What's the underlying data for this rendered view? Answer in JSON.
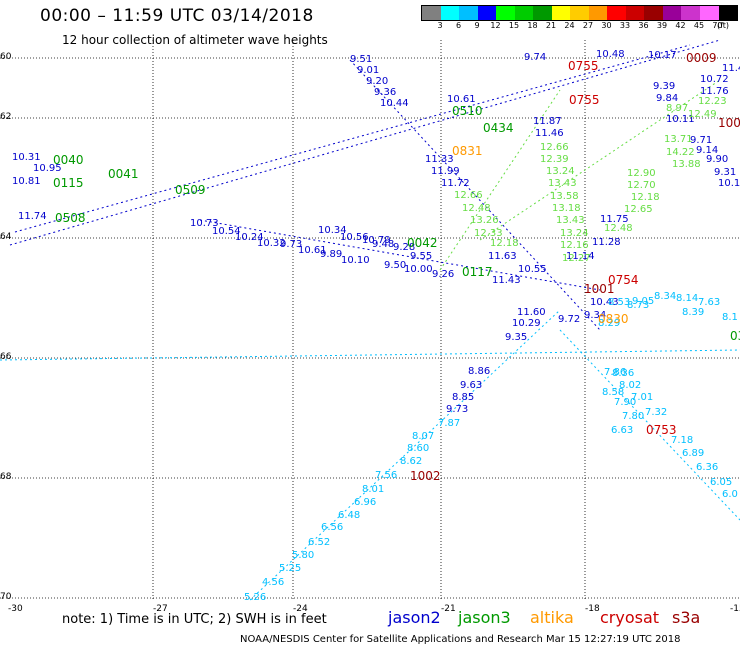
{
  "header": {
    "title": "00:00 – 11:59 UTC 03/14/2018",
    "subtitle": "12 hour collection of altimeter wave heights"
  },
  "colorbar": {
    "colors": [
      "#808080",
      "#00ffff",
      "#00bfff",
      "#0000ff",
      "#00ff00",
      "#00cc00",
      "#009900",
      "#ffff00",
      "#ffcc00",
      "#ff9900",
      "#ff0000",
      "#cc0000",
      "#990000",
      "#990099",
      "#cc33cc",
      "#ff66ff",
      "#000000"
    ],
    "ticks": [
      "3",
      "6",
      "9",
      "12",
      "15",
      "18",
      "21",
      "24",
      "27",
      "30",
      "33",
      "36",
      "39",
      "42",
      "45",
      "70"
    ],
    "unit": "(ft)"
  },
  "axes": {
    "lon_labels": [
      "-30",
      "-27",
      "-24",
      "-21",
      "-18",
      "-15"
    ],
    "lat_labels": [
      "60",
      "62",
      "64",
      "66",
      "68",
      "70"
    ]
  },
  "footer": {
    "note": "note: 1) Time is in UTC; 2) SWH is in feet",
    "legend": [
      {
        "name": "jason2",
        "color": "#0000cc"
      },
      {
        "name": "jason3",
        "color": "#009900"
      },
      {
        "name": "altika",
        "color": "#ff9900"
      },
      {
        "name": "cryosat",
        "color": "#cc0000"
      },
      {
        "name": "s3a",
        "color": "#990000"
      }
    ],
    "credit": "NOAA/NESDIS Center for Satellite Applications and Research     Mar 15 12:27:19 UTC 2018"
  },
  "map_labels": [
    {
      "t": "9.51",
      "c": "#0000cc"
    },
    {
      "t": "9.01",
      "c": "#0000cc"
    },
    {
      "t": "9.20",
      "c": "#0000cc"
    },
    {
      "t": "9.36",
      "c": "#0000cc"
    },
    {
      "t": "10.44",
      "c": "#0000cc"
    },
    {
      "t": "10.61",
      "c": "#0000cc"
    },
    {
      "t": "9.74",
      "c": "#0000cc"
    },
    {
      "t": "10.48",
      "c": "#0000cc"
    },
    {
      "t": "10.17",
      "c": "#0000cc"
    },
    {
      "t": "11.4",
      "c": "#0000cc"
    },
    {
      "t": "10.72",
      "c": "#0000cc"
    },
    {
      "t": "11.76",
      "c": "#0000cc"
    },
    {
      "t": "9.39",
      "c": "#0000cc"
    },
    {
      "t": "9.84",
      "c": "#0000cc"
    },
    {
      "t": "10.11",
      "c": "#0000cc"
    },
    {
      "t": "9.71",
      "c": "#0000cc"
    },
    {
      "t": "9.14",
      "c": "#0000cc"
    },
    {
      "t": "9.90",
      "c": "#0000cc"
    },
    {
      "t": "9.31",
      "c": "#0000cc"
    },
    {
      "t": "10.1",
      "c": "#0000cc"
    },
    {
      "t": "10.31",
      "c": "#0000cc"
    },
    {
      "t": "10.95",
      "c": "#0000cc"
    },
    {
      "t": "10.81",
      "c": "#0000cc"
    },
    {
      "t": "11.74",
      "c": "#0000cc"
    },
    {
      "t": "11.33",
      "c": "#0000cc"
    },
    {
      "t": "11.99",
      "c": "#0000cc"
    },
    {
      "t": "11.72",
      "c": "#0000cc"
    },
    {
      "t": "11.87",
      "c": "#0000cc"
    },
    {
      "t": "11.46",
      "c": "#0000cc"
    },
    {
      "t": "10.73",
      "c": "#0000cc"
    },
    {
      "t": "10.54",
      "c": "#0000cc"
    },
    {
      "t": "10.24",
      "c": "#0000cc"
    },
    {
      "t": "10.32",
      "c": "#0000cc"
    },
    {
      "t": "9.73",
      "c": "#0000cc"
    },
    {
      "t": "10.61",
      "c": "#0000cc"
    },
    {
      "t": "10.34",
      "c": "#0000cc"
    },
    {
      "t": "10.56",
      "c": "#0000cc"
    },
    {
      "t": "10.79",
      "c": "#0000cc"
    },
    {
      "t": "9.48",
      "c": "#0000cc"
    },
    {
      "t": "9.28",
      "c": "#0000cc"
    },
    {
      "t": "9.55",
      "c": "#0000cc"
    },
    {
      "t": "9.89",
      "c": "#0000cc"
    },
    {
      "t": "10.10",
      "c": "#0000cc"
    },
    {
      "t": "9.50",
      "c": "#0000cc"
    },
    {
      "t": "10.00",
      "c": "#0000cc"
    },
    {
      "t": "9.26",
      "c": "#0000cc"
    },
    {
      "t": "11.63",
      "c": "#0000cc"
    },
    {
      "t": "10.55",
      "c": "#0000cc"
    },
    {
      "t": "11.43",
      "c": "#0000cc"
    },
    {
      "t": "11.60",
      "c": "#0000cc"
    },
    {
      "t": "10.29",
      "c": "#0000cc"
    },
    {
      "t": "9.35",
      "c": "#0000cc"
    },
    {
      "t": "9.72",
      "c": "#0000cc"
    },
    {
      "t": "9.34",
      "c": "#0000cc"
    },
    {
      "t": "10.43",
      "c": "#0000cc"
    },
    {
      "t": "8.86",
      "c": "#0000cc"
    },
    {
      "t": "9.63",
      "c": "#0000cc"
    },
    {
      "t": "8.85",
      "c": "#0000cc"
    },
    {
      "t": "9.73",
      "c": "#0000cc"
    },
    {
      "t": "11.75",
      "c": "#0000cc"
    },
    {
      "t": "11.28",
      "c": "#0000cc"
    },
    {
      "t": "11.14",
      "c": "#0000cc"
    },
    {
      "t": "7.87",
      "c": "#00bfff"
    },
    {
      "t": "8.07",
      "c": "#00bfff"
    },
    {
      "t": "8.60",
      "c": "#00bfff"
    },
    {
      "t": "8.62",
      "c": "#00bfff"
    },
    {
      "t": "7.56",
      "c": "#00bfff"
    },
    {
      "t": "8.01",
      "c": "#00bfff"
    },
    {
      "t": "6.96",
      "c": "#00bfff"
    },
    {
      "t": "6.48",
      "c": "#00bfff"
    },
    {
      "t": "6.56",
      "c": "#00bfff"
    },
    {
      "t": "6.52",
      "c": "#00bfff"
    },
    {
      "t": "5.80",
      "c": "#00bfff"
    },
    {
      "t": "5.25",
      "c": "#00bfff"
    },
    {
      "t": "4.56",
      "c": "#00bfff"
    },
    {
      "t": "5.26",
      "c": "#00bfff"
    },
    {
      "t": "7.86",
      "c": "#00bfff"
    },
    {
      "t": "8.36",
      "c": "#00bfff"
    },
    {
      "t": "8.02",
      "c": "#00bfff"
    },
    {
      "t": "8.58",
      "c": "#00bfff"
    },
    {
      "t": "7.01",
      "c": "#00bfff"
    },
    {
      "t": "7.90",
      "c": "#00bfff"
    },
    {
      "t": "7.32",
      "c": "#00bfff"
    },
    {
      "t": "7.80",
      "c": "#00bfff"
    },
    {
      "t": "6.63",
      "c": "#00bfff"
    },
    {
      "t": "7.18",
      "c": "#00bfff"
    },
    {
      "t": "6.89",
      "c": "#00bfff"
    },
    {
      "t": "6.36",
      "c": "#00bfff"
    },
    {
      "t": "6.05",
      "c": "#00bfff"
    },
    {
      "t": "6.0",
      "c": "#00bfff"
    },
    {
      "t": "8.34",
      "c": "#00bfff"
    },
    {
      "t": "8.14",
      "c": "#00bfff"
    },
    {
      "t": "7.63",
      "c": "#00bfff"
    },
    {
      "t": "8.53",
      "c": "#00bfff"
    },
    {
      "t": "8.73",
      "c": "#00bfff"
    },
    {
      "t": "8.39",
      "c": "#00bfff"
    },
    {
      "t": "8.1",
      "c": "#00bfff"
    },
    {
      "t": "9.05",
      "c": "#00bfff"
    },
    {
      "t": "8.29",
      "c": "#00bfff"
    },
    {
      "t": "12.23",
      "c": "#66dd44"
    },
    {
      "t": "12.49",
      "c": "#66dd44"
    },
    {
      "t": "8.97",
      "c": "#66dd44"
    },
    {
      "t": "12.66",
      "c": "#66dd44"
    },
    {
      "t": "12.39",
      "c": "#66dd44"
    },
    {
      "t": "13.24",
      "c": "#66dd44"
    },
    {
      "t": "13.43",
      "c": "#66dd44"
    },
    {
      "t": "13.58",
      "c": "#66dd44"
    },
    {
      "t": "13.18",
      "c": "#66dd44"
    },
    {
      "t": "13.43",
      "c": "#66dd44"
    },
    {
      "t": "13.24",
      "c": "#66dd44"
    },
    {
      "t": "12.16",
      "c": "#66dd44"
    },
    {
      "t": "12.27",
      "c": "#66dd44"
    },
    {
      "t": "12.66",
      "c": "#66dd44"
    },
    {
      "t": "12.48",
      "c": "#66dd44"
    },
    {
      "t": "13.26",
      "c": "#66dd44"
    },
    {
      "t": "12.33",
      "c": "#66dd44"
    },
    {
      "t": "12.18",
      "c": "#66dd44"
    },
    {
      "t": "13.71",
      "c": "#66dd44"
    },
    {
      "t": "14.22",
      "c": "#66dd44"
    },
    {
      "t": "13.88",
      "c": "#66dd44"
    },
    {
      "t": "12.90",
      "c": "#66dd44"
    },
    {
      "t": "12.70",
      "c": "#66dd44"
    },
    {
      "t": "12.18",
      "c": "#66dd44"
    },
    {
      "t": "12.65",
      "c": "#66dd44"
    },
    {
      "t": "12.48",
      "c": "#66dd44"
    },
    {
      "t": "0040",
      "c": "#009900"
    },
    {
      "t": "0115",
      "c": "#009900"
    },
    {
      "t": "0041",
      "c": "#009900"
    },
    {
      "t": "0509",
      "c": "#009900"
    },
    {
      "t": "0508",
      "c": "#009900"
    },
    {
      "t": "0510",
      "c": "#009900"
    },
    {
      "t": "0042",
      "c": "#009900"
    },
    {
      "t": "0117",
      "c": "#009900"
    },
    {
      "t": "0314",
      "c": "#009900"
    },
    {
      "t": "0434",
      "c": "#009900"
    },
    {
      "t": "0831",
      "c": "#ff9900"
    },
    {
      "t": "0830",
      "c": "#ff9900"
    },
    {
      "t": "0755",
      "c": "#cc0000"
    },
    {
      "t": "0755",
      "c": "#cc0000"
    },
    {
      "t": "0754",
      "c": "#cc0000"
    },
    {
      "t": "0753",
      "c": "#cc0000"
    },
    {
      "t": "1001",
      "c": "#990000"
    },
    {
      "t": "1002",
      "c": "#990000"
    },
    {
      "t": "0009",
      "c": "#990000"
    },
    {
      "t": "100",
      "c": "#990000"
    }
  ]
}
